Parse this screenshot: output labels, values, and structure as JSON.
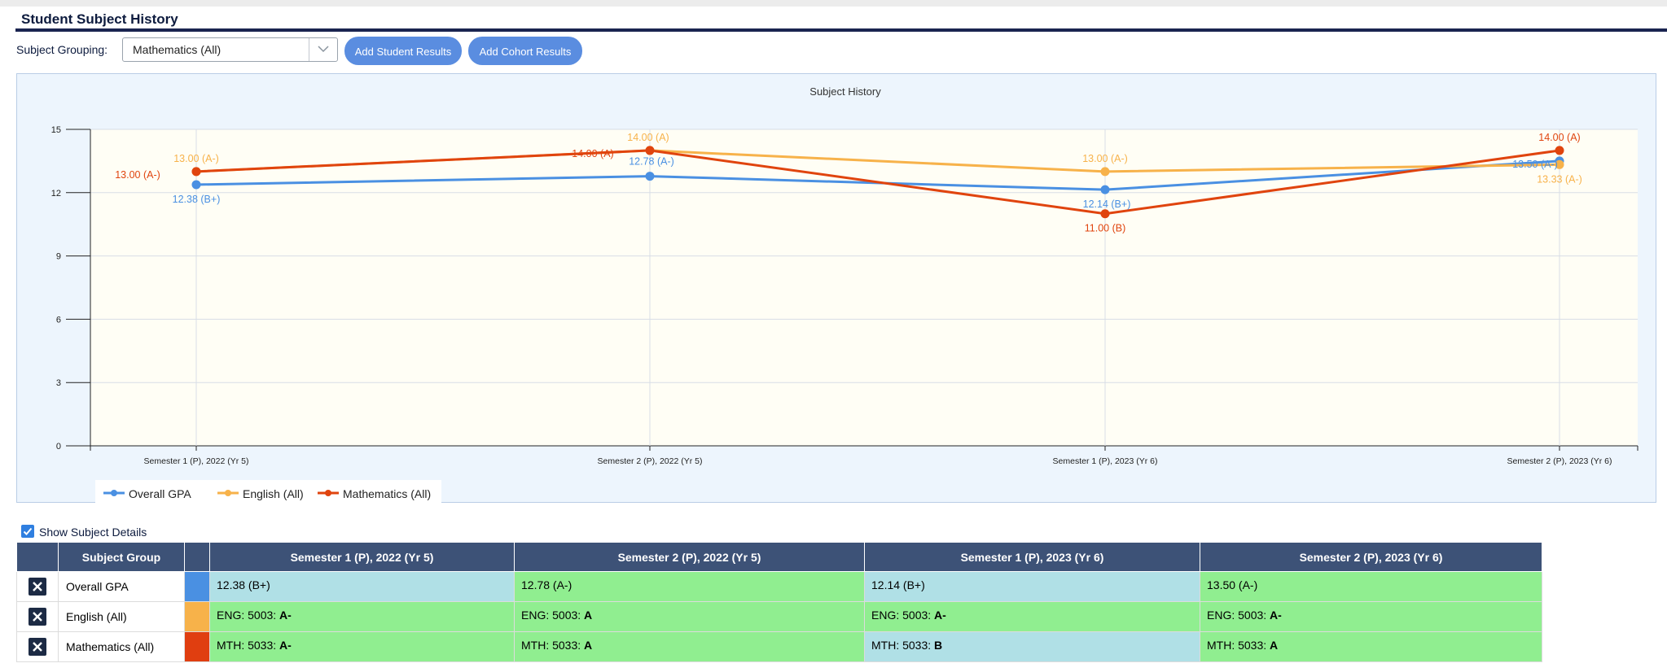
{
  "header": {
    "title": "Student Subject History"
  },
  "controls": {
    "grouping_label": "Subject Grouping:",
    "grouping_value": "Mathematics (All)",
    "add_student_label": "Add Student Results",
    "add_cohort_label": "Add Cohort Results"
  },
  "chart_data": {
    "type": "line",
    "title": "Subject History",
    "categories": [
      "Semester 1 (P), 2022 (Yr 5)",
      "Semester 2 (P), 2022 (Yr 5)",
      "Semester 1 (P), 2023 (Yr 6)",
      "Semester 2 (P), 2023 (Yr 6)"
    ],
    "ylim": [
      0,
      15
    ],
    "yticks": [
      0,
      3,
      6,
      9,
      12,
      15
    ],
    "grid": true,
    "legend_position": "bottom-left",
    "series": [
      {
        "name": "Overall GPA",
        "color": "#4a90e2",
        "values": [
          12.38,
          12.78,
          12.14,
          13.5
        ],
        "labels": [
          "12.38 (B+)",
          "12.78 (A-)",
          "12.14 (B+)",
          "13.50 (A-)"
        ]
      },
      {
        "name": "English (All)",
        "color": "#f7b24a",
        "values": [
          13.0,
          14.0,
          13.0,
          13.33
        ],
        "labels": [
          "13.00 (A-)",
          "14.00 (A)",
          "13.00 (A-)",
          "13.33 (A-)"
        ]
      },
      {
        "name": "Mathematics (All)",
        "color": "#e0440e",
        "values": [
          13.0,
          14.0,
          11.0,
          14.0
        ],
        "labels": [
          "13.00 (A-)",
          "14.00 (A)",
          "11.00 (B)",
          "14.00 (A)"
        ]
      }
    ]
  },
  "details": {
    "show_label": "Show Subject Details",
    "show_checked": true,
    "col_subject": "Subject Group",
    "columns": [
      "Semester 1 (P), 2022 (Yr 5)",
      "Semester 2 (P), 2022 (Yr 5)",
      "Semester 1 (P), 2023 (Yr 6)",
      "Semester 2 (P), 2023 (Yr 6)"
    ],
    "rows": [
      {
        "name": "Overall GPA",
        "color": "#4a90e2",
        "cells": [
          {
            "pre": "12.38 (B+)",
            "grade": ""
          },
          {
            "pre": "12.78 (A-)",
            "grade": ""
          },
          {
            "pre": "12.14 (B+)",
            "grade": ""
          },
          {
            "pre": "13.50 (A-)",
            "grade": ""
          }
        ]
      },
      {
        "name": "English (All)",
        "color": "#f7b24a",
        "cells": [
          {
            "pre": "ENG: 5003: ",
            "grade": "A-"
          },
          {
            "pre": "ENG: 5003: ",
            "grade": "A"
          },
          {
            "pre": "ENG: 5003: ",
            "grade": "A-"
          },
          {
            "pre": "ENG: 5003: ",
            "grade": "A-"
          }
        ]
      },
      {
        "name": "Mathematics (All)",
        "color": "#e03e10",
        "cells": [
          {
            "pre": "MTH: 5033: ",
            "grade": "A-"
          },
          {
            "pre": "MTH: 5033: ",
            "grade": "A"
          },
          {
            "pre": "MTH: 5033: ",
            "grade": "B"
          },
          {
            "pre": "MTH: 5033: ",
            "grade": "A"
          }
        ]
      }
    ]
  }
}
